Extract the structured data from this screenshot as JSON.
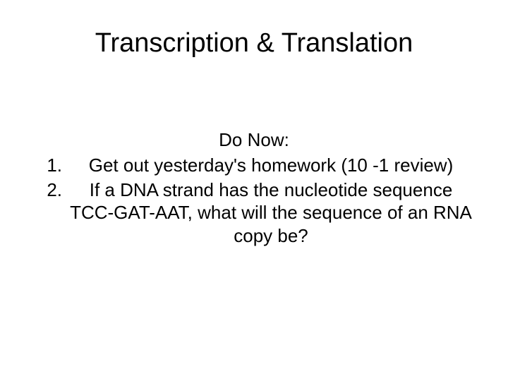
{
  "slide": {
    "title": "Transcription & Translation",
    "subtitle": "Do Now:",
    "items": [
      {
        "number": "1.",
        "text": "Get out yesterday's homework (10 -1 review)"
      },
      {
        "number": "2.",
        "text": "If a DNA strand has the nucleotide sequence TCC-GAT-AAT, what will the sequence of an RNA copy be?"
      }
    ],
    "background_color": "#ffffff",
    "text_color": "#000000",
    "title_fontsize": 38,
    "body_fontsize": 26
  }
}
